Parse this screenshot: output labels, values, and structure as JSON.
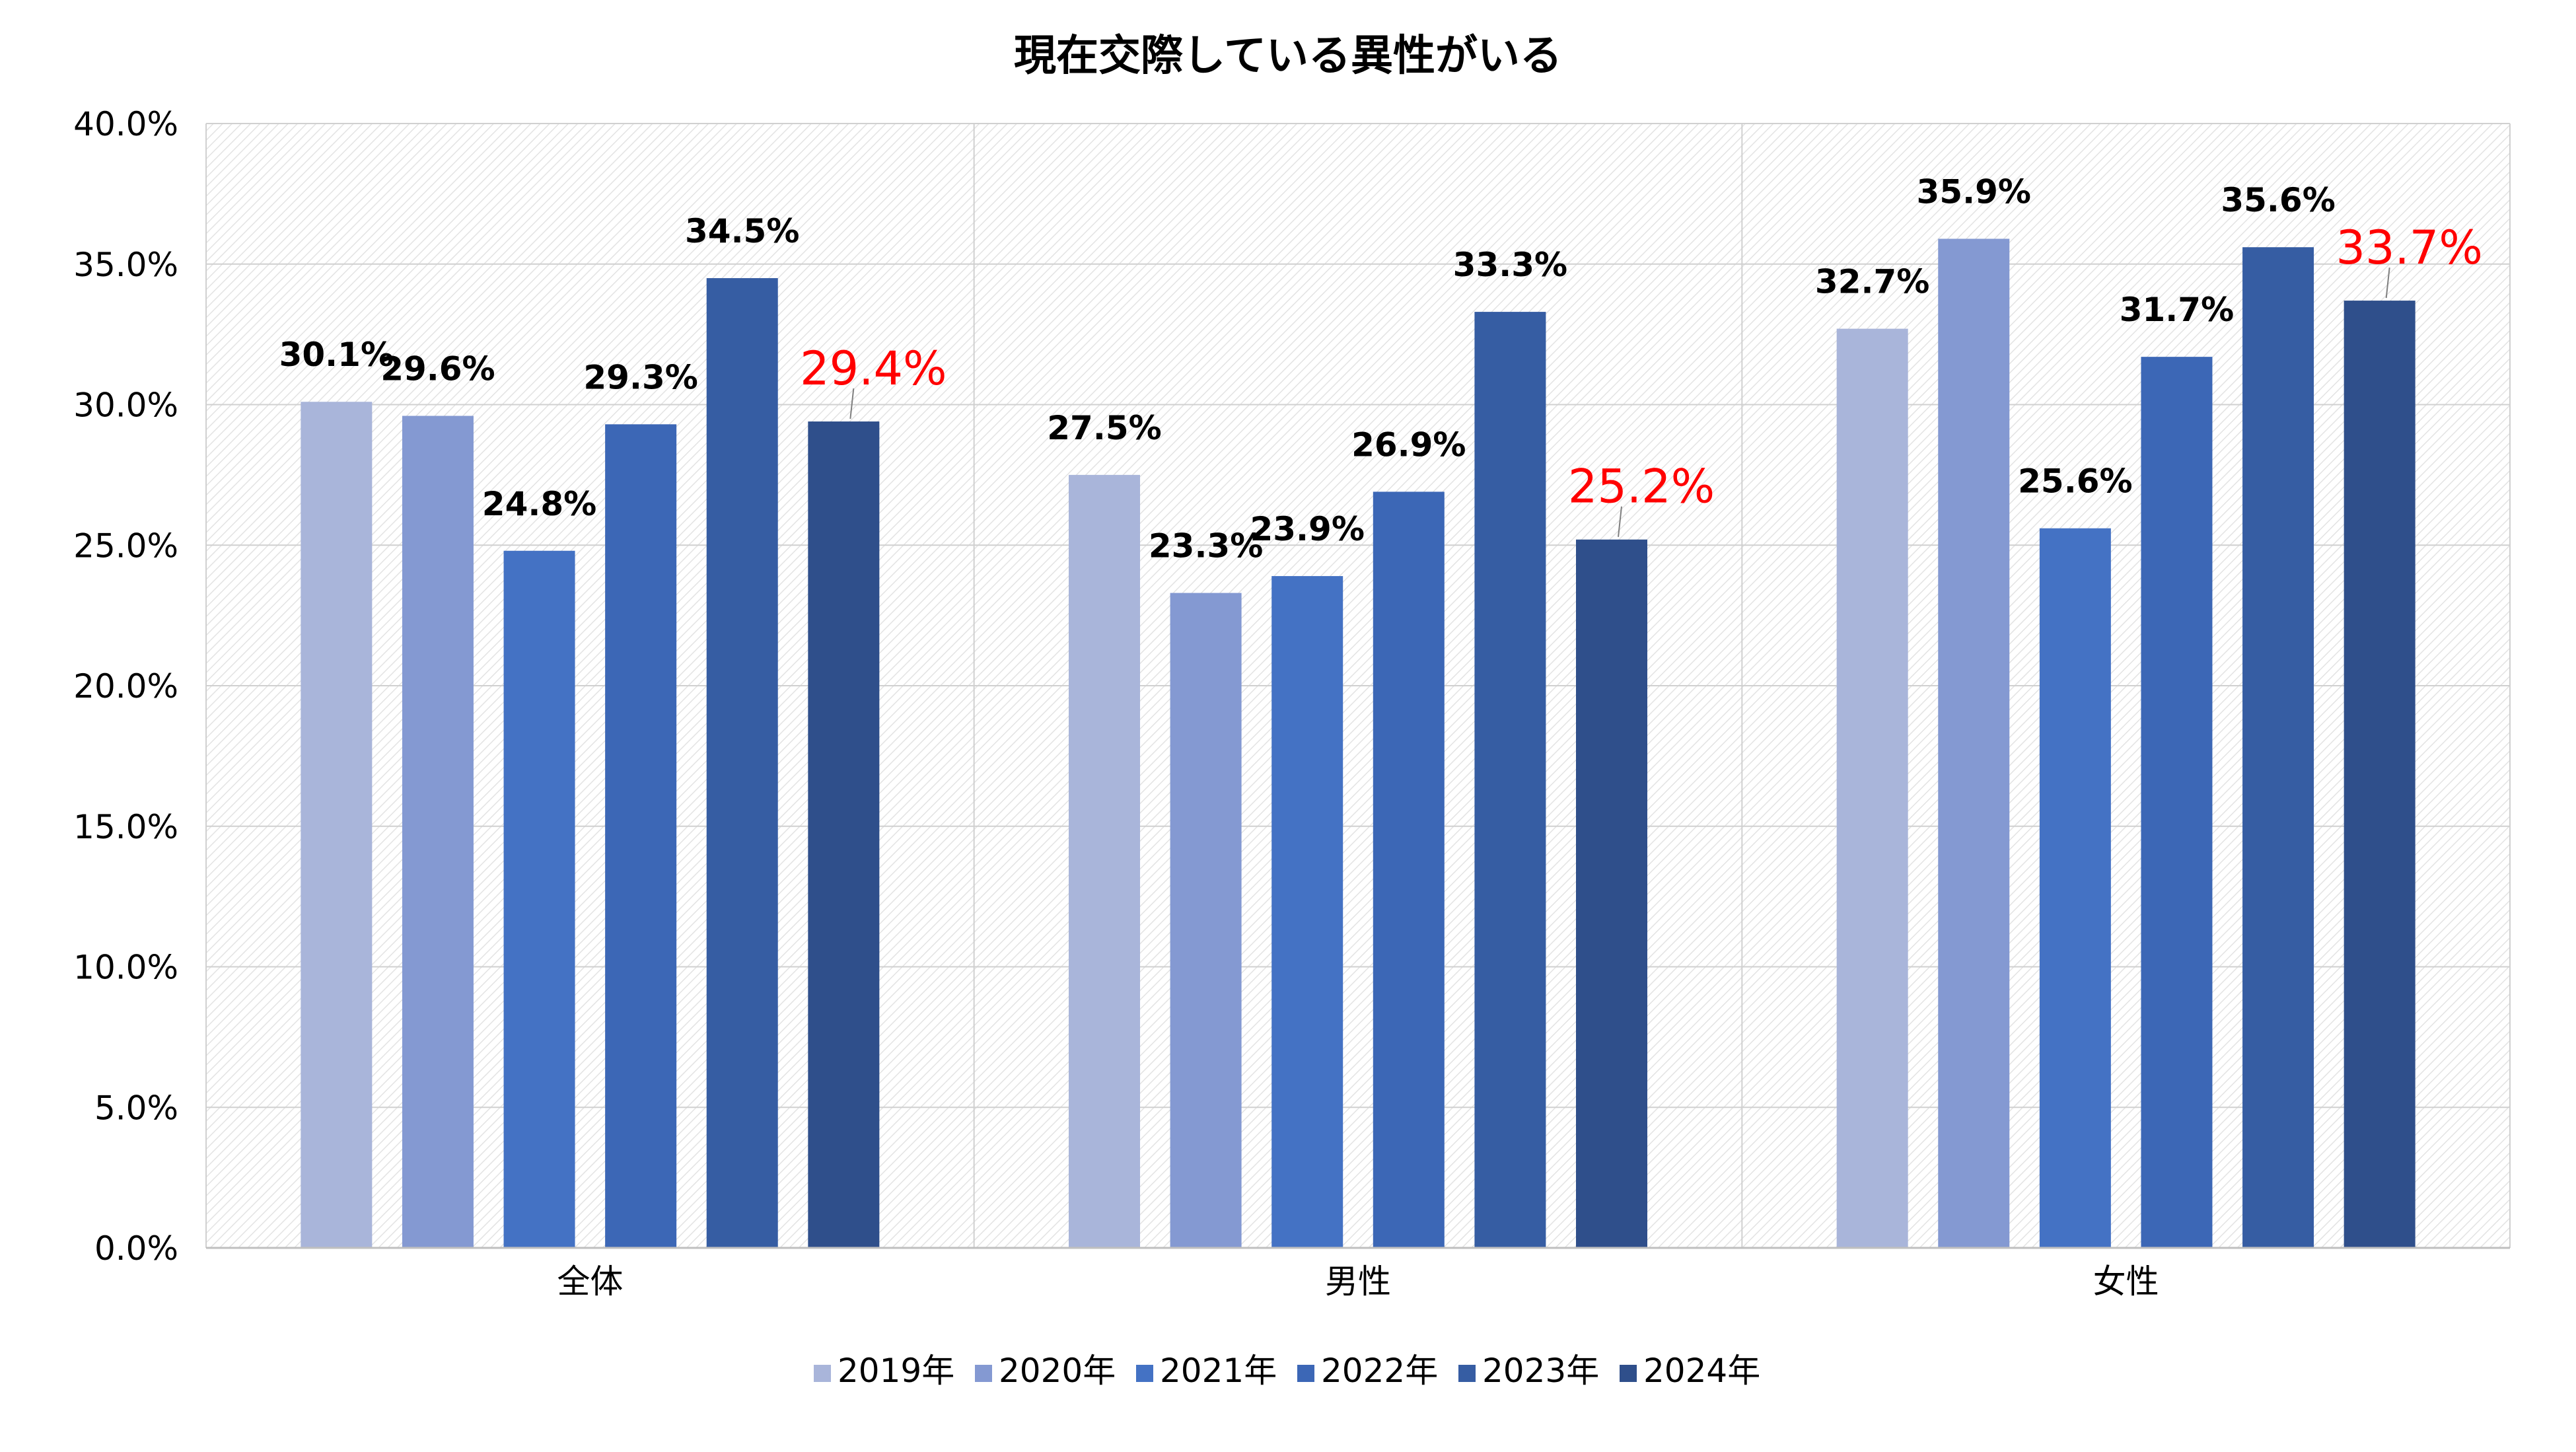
{
  "chart_data": {
    "type": "bar",
    "title": "現在交際している異性がいる",
    "categories": [
      "全体",
      "男性",
      "女性"
    ],
    "series": [
      {
        "name": "2019年",
        "values": [
          30.1,
          27.5,
          32.7
        ],
        "color": "#A9B5DA"
      },
      {
        "name": "2020年",
        "values": [
          29.6,
          23.3,
          35.9
        ],
        "color": "#8499D2"
      },
      {
        "name": "2021年",
        "values": [
          24.8,
          23.9,
          25.6
        ],
        "color": "#4472C4"
      },
      {
        "name": "2022年",
        "values": [
          29.3,
          26.9,
          31.7
        ],
        "color": "#3C67B6"
      },
      {
        "name": "2023年",
        "values": [
          34.5,
          33.3,
          35.6
        ],
        "color": "#365DA3"
      },
      {
        "name": "2024年",
        "values": [
          29.4,
          25.2,
          33.7
        ],
        "color": "#2F4F8B"
      }
    ],
    "data_labels": [
      [
        "30.1%",
        "27.5%",
        "32.7%"
      ],
      [
        "29.6%",
        "23.3%",
        "35.9%"
      ],
      [
        "24.8%",
        "23.9%",
        "25.6%"
      ],
      [
        "29.3%",
        "26.9%",
        "31.7%"
      ],
      [
        "34.5%",
        "33.3%",
        "35.6%"
      ],
      [
        "29.4%",
        "25.2%",
        "33.7%"
      ]
    ],
    "highlight_series": "2024年",
    "highlight_color": "#FF0000",
    "y_ticks": [
      "0.0%",
      "5.0%",
      "10.0%",
      "15.0%",
      "20.0%",
      "25.0%",
      "30.0%",
      "35.0%",
      "40.0%"
    ],
    "ylim": [
      0,
      40
    ],
    "xlabel": "",
    "ylabel": "",
    "grid": true,
    "legend_position": "bottom"
  }
}
